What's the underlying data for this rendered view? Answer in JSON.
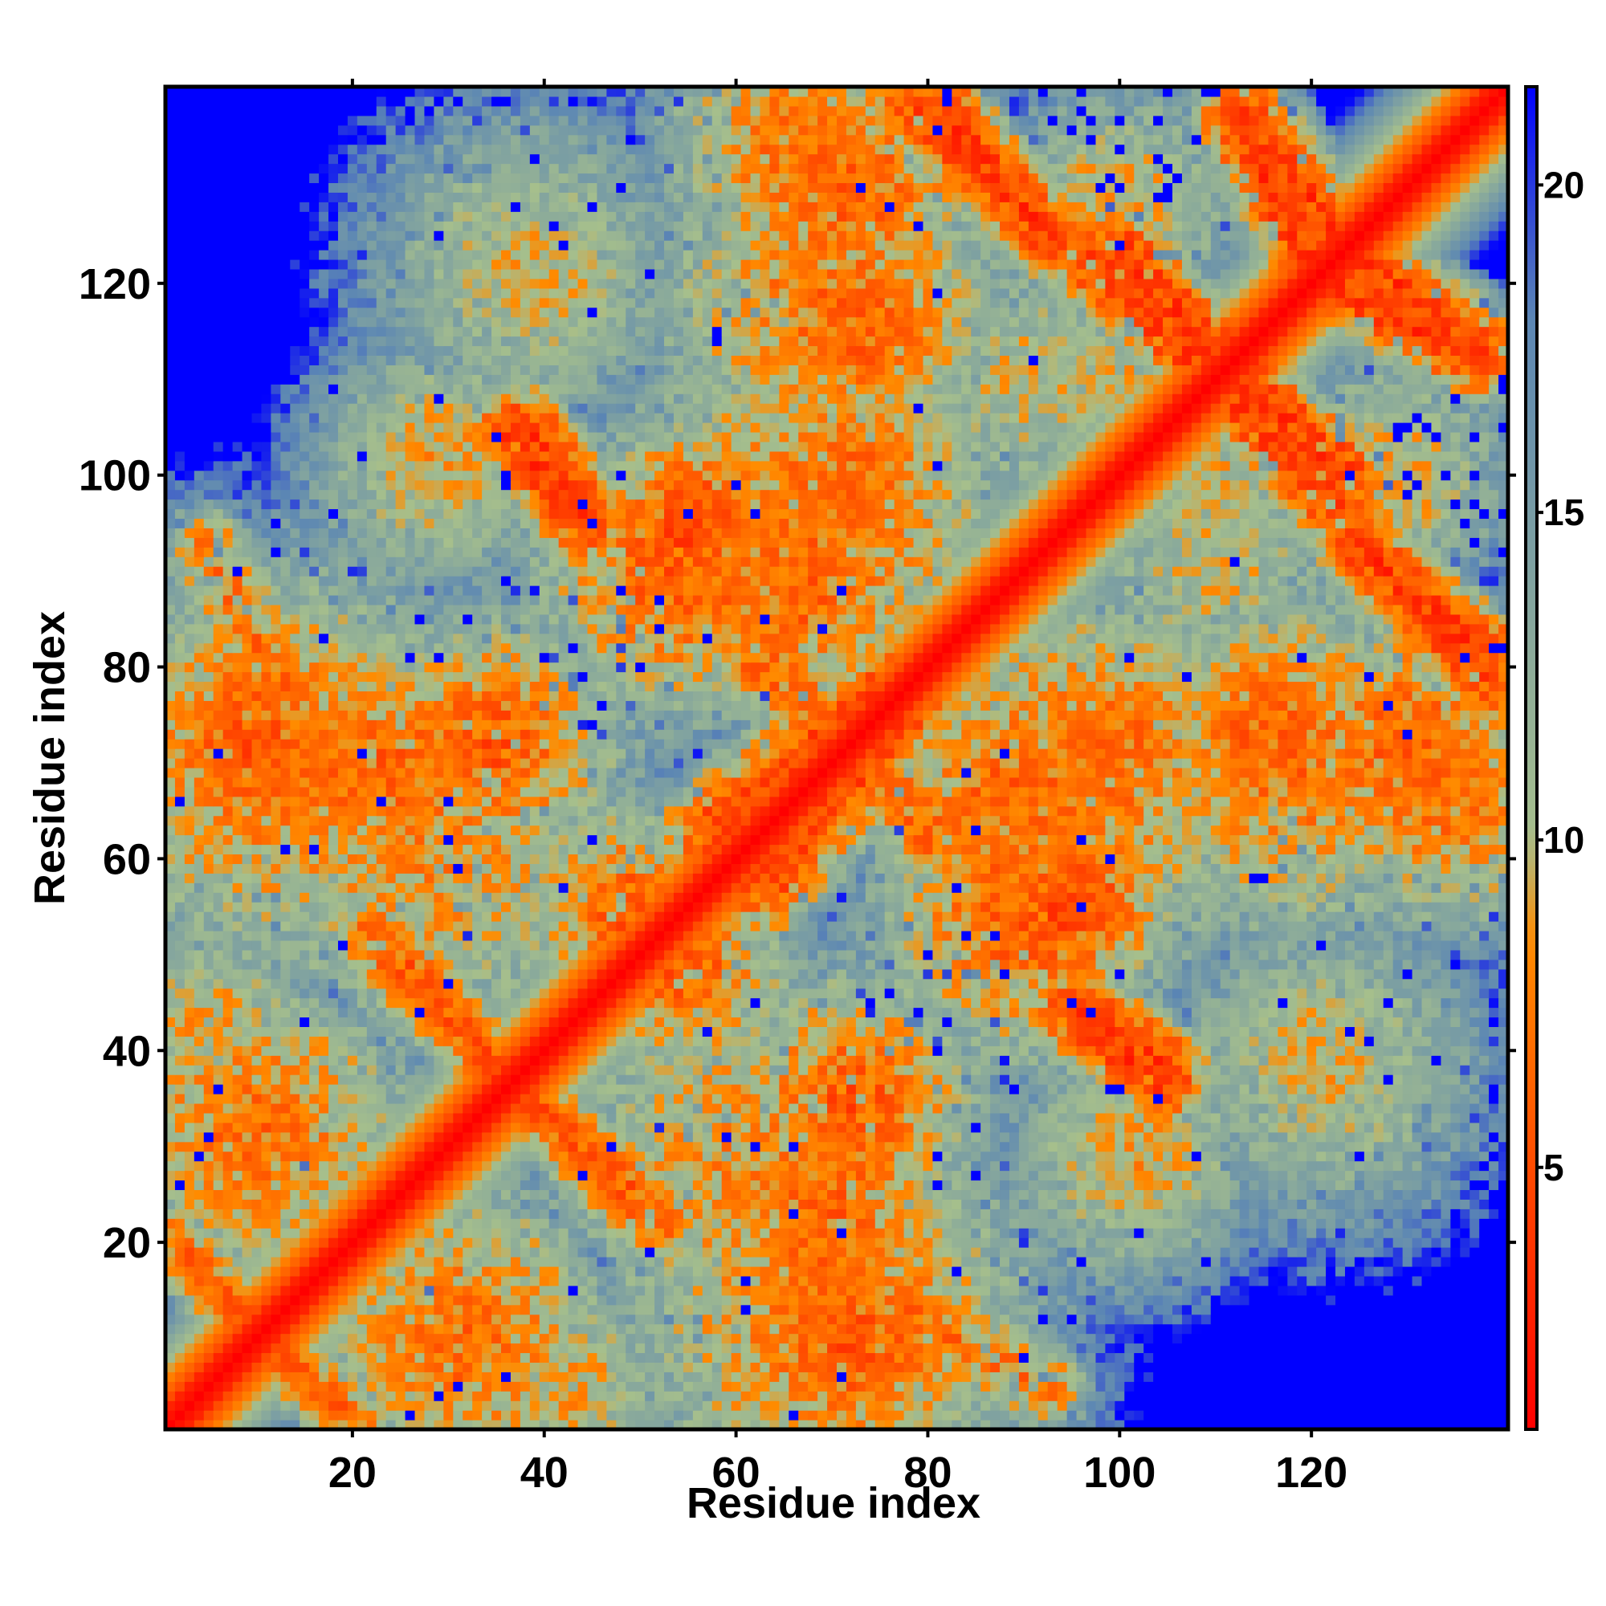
{
  "chart_data": {
    "type": "heatmap",
    "title": "",
    "xlabel": "Residue index",
    "ylabel": "Residue index",
    "x_range": [
      1,
      140
    ],
    "y_range": [
      1,
      140
    ],
    "x_ticks": [
      20,
      40,
      60,
      80,
      100,
      120
    ],
    "y_ticks": [
      20,
      40,
      60,
      80,
      100,
      120
    ],
    "colorbar": {
      "range": [
        1,
        21.5
      ],
      "ticks": [
        5,
        10,
        15,
        20
      ],
      "colors": [
        "#ff0000",
        "#ff8c00",
        "#a6bf8c",
        "#5b86b4",
        "#0000ff"
      ],
      "stops": [
        1,
        8.5,
        10,
        18,
        21.5
      ]
    },
    "diagonal_band": {
      "value": 1,
      "halfwidth": 2.2
    },
    "background_value": 21.5,
    "contact_features": [
      {
        "kind": "line",
        "from": [
          3,
          18
        ],
        "to": [
          20,
          1
        ],
        "hw": 2.5,
        "min": 6.5
      },
      {
        "kind": "line",
        "from": [
          25,
          48
        ],
        "to": [
          52,
          22
        ],
        "hw": 2.8,
        "min": 6.0
      },
      {
        "kind": "line",
        "from": [
          38,
          105
        ],
        "to": [
          44,
          96
        ],
        "hw": 3.5,
        "min": 4.5
      },
      {
        "kind": "line",
        "from": [
          52,
          96
        ],
        "to": [
          80,
          62
        ],
        "hw": 3.0,
        "min": 7.0
      },
      {
        "kind": "line",
        "from": [
          57,
          63
        ],
        "to": [
          76,
          78
        ],
        "hw": 3.5,
        "min": 5.0
      },
      {
        "kind": "line",
        "from": [
          65,
          20
        ],
        "to": [
          92,
          5
        ],
        "hw": 3.0,
        "min": 7.0
      },
      {
        "kind": "line",
        "from": [
          82,
          138
        ],
        "to": [
          92,
          125
        ],
        "hw": 3.0,
        "min": 4.5
      },
      {
        "kind": "line",
        "from": [
          95,
          44
        ],
        "to": [
          105,
          36
        ],
        "hw": 3.0,
        "min": 4.5
      },
      {
        "kind": "line",
        "from": [
          100,
          124
        ],
        "to": [
          110,
          113
        ],
        "hw": 3.0,
        "min": 4.5
      },
      {
        "kind": "line",
        "from": [
          113,
          138
        ],
        "to": [
          122,
          126
        ],
        "hw": 3.0,
        "min": 4.5
      },
      {
        "kind": "line",
        "from": [
          112,
          108
        ],
        "to": [
          123,
          96
        ],
        "hw": 3.0,
        "min": 4.5
      },
      {
        "kind": "line",
        "from": [
          120,
          121
        ],
        "to": [
          137,
          112
        ],
        "hw": 3.0,
        "min": 4.5
      },
      {
        "kind": "line",
        "from": [
          124,
          94
        ],
        "to": [
          139,
          78
        ],
        "hw": 3.0,
        "min": 4.5
      },
      {
        "kind": "blob",
        "center": [
          12,
          70
        ],
        "r": 14,
        "min": 7.0
      },
      {
        "kind": "blob",
        "center": [
          28,
          62
        ],
        "r": 14,
        "min": 8.0
      },
      {
        "kind": "blob",
        "center": [
          10,
          32
        ],
        "r": 11,
        "min": 7.0
      },
      {
        "kind": "blob",
        "center": [
          35,
          72
        ],
        "r": 9,
        "min": 6.0
      },
      {
        "kind": "blob",
        "center": [
          30,
          10
        ],
        "r": 10,
        "min": 8.0
      },
      {
        "kind": "blob",
        "center": [
          43,
          5
        ],
        "r": 7,
        "min": 9.0
      },
      {
        "kind": "blob",
        "center": [
          54,
          90
        ],
        "r": 10,
        "min": 6.0
      },
      {
        "kind": "blob",
        "center": [
          68,
          95
        ],
        "r": 14,
        "min": 7.0
      },
      {
        "kind": "blob",
        "center": [
          72,
          130
        ],
        "r": 10,
        "min": 6.5
      },
      {
        "kind": "blob",
        "center": [
          74,
          115
        ],
        "r": 8,
        "min": 6.5
      },
      {
        "kind": "blob",
        "center": [
          40,
          120
        ],
        "r": 9,
        "min": 10.0
      },
      {
        "kind": "blob",
        "center": [
          28,
          100
        ],
        "r": 8,
        "min": 10.0
      },
      {
        "kind": "blob",
        "center": [
          70,
          25
        ],
        "r": 9,
        "min": 6.5
      },
      {
        "kind": "blob",
        "center": [
          72,
          10
        ],
        "r": 10,
        "min": 6.0
      },
      {
        "kind": "blob",
        "center": [
          55,
          48
        ],
        "r": 7,
        "min": 6.0
      },
      {
        "kind": "blob",
        "center": [
          88,
          66
        ],
        "r": 9,
        "min": 6.5
      },
      {
        "kind": "blob",
        "center": [
          95,
          55
        ],
        "r": 7,
        "min": 5.0
      },
      {
        "kind": "blob",
        "center": [
          100,
          72
        ],
        "r": 9,
        "min": 7.0
      },
      {
        "kind": "blob",
        "center": [
          118,
          70
        ],
        "r": 12,
        "min": 7.0
      },
      {
        "kind": "blob",
        "center": [
          134,
          66
        ],
        "r": 9,
        "min": 7.0
      },
      {
        "kind": "blob",
        "center": [
          102,
          30
        ],
        "r": 8,
        "min": 9.0
      },
      {
        "kind": "blob",
        "center": [
          122,
          38
        ],
        "r": 10,
        "min": 10.0
      },
      {
        "kind": "blob",
        "center": [
          100,
          128
        ],
        "r": 8,
        "min": 9.0
      },
      {
        "kind": "blob",
        "center": [
          90,
          110
        ],
        "r": 9,
        "min": 10.0
      },
      {
        "kind": "blob",
        "center": [
          110,
          100
        ],
        "r": 8,
        "min": 10.0
      }
    ]
  }
}
